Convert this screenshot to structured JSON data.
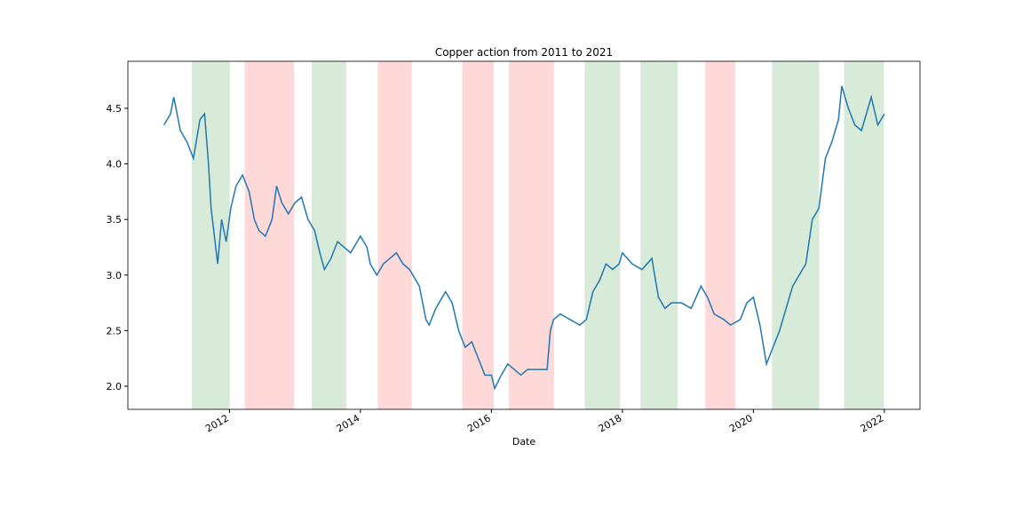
{
  "chart_data": {
    "type": "line",
    "title": "Copper action from 2011 to 2021",
    "x_label": "Date",
    "color": "#1f77b4",
    "x": [
      2011.0,
      2011.1,
      2011.15,
      2011.25,
      2011.35,
      2011.45,
      2011.55,
      2011.62,
      2011.68,
      2011.72,
      2011.78,
      2011.82,
      2011.88,
      2011.95,
      2012.02,
      2012.1,
      2012.2,
      2012.3,
      2012.38,
      2012.45,
      2012.55,
      2012.65,
      2012.72,
      2012.8,
      2012.9,
      2013.0,
      2013.1,
      2013.2,
      2013.3,
      2013.38,
      2013.45,
      2013.55,
      2013.65,
      2013.75,
      2013.85,
      2014.0,
      2014.1,
      2014.15,
      2014.25,
      2014.35,
      2014.45,
      2014.55,
      2014.65,
      2014.75,
      2014.9,
      2015.0,
      2015.05,
      2015.15,
      2015.3,
      2015.4,
      2015.5,
      2015.6,
      2015.7,
      2015.8,
      2015.9,
      2016.0,
      2016.05,
      2016.15,
      2016.25,
      2016.35,
      2016.45,
      2016.55,
      2016.7,
      2016.85,
      2016.9,
      2016.95,
      2017.05,
      2017.2,
      2017.35,
      2017.45,
      2017.55,
      2017.65,
      2017.75,
      2017.85,
      2017.95,
      2018.0,
      2018.15,
      2018.3,
      2018.45,
      2018.55,
      2018.65,
      2018.75,
      2018.9,
      2019.05,
      2019.2,
      2019.3,
      2019.4,
      2019.55,
      2019.65,
      2019.8,
      2019.9,
      2020.0,
      2020.1,
      2020.2,
      2020.3,
      2020.4,
      2020.5,
      2020.6,
      2020.7,
      2020.8,
      2020.9,
      2021.0,
      2021.1,
      2021.2,
      2021.3,
      2021.35,
      2021.45,
      2021.55,
      2021.65,
      2021.7,
      2021.8,
      2021.9,
      2022.0
    ],
    "values": [
      4.35,
      4.45,
      4.6,
      4.3,
      4.2,
      4.05,
      4.4,
      4.45,
      4.0,
      3.6,
      3.3,
      3.1,
      3.5,
      3.3,
      3.6,
      3.8,
      3.9,
      3.75,
      3.5,
      3.4,
      3.35,
      3.5,
      3.8,
      3.65,
      3.55,
      3.65,
      3.7,
      3.5,
      3.4,
      3.2,
      3.05,
      3.15,
      3.3,
      3.25,
      3.2,
      3.35,
      3.25,
      3.1,
      3.0,
      3.1,
      3.15,
      3.2,
      3.1,
      3.05,
      2.9,
      2.6,
      2.55,
      2.7,
      2.85,
      2.75,
      2.5,
      2.35,
      2.4,
      2.25,
      2.1,
      2.1,
      1.98,
      2.1,
      2.2,
      2.15,
      2.1,
      2.15,
      2.15,
      2.15,
      2.5,
      2.6,
      2.65,
      2.6,
      2.55,
      2.6,
      2.85,
      2.95,
      3.1,
      3.05,
      3.1,
      3.2,
      3.1,
      3.05,
      3.15,
      2.8,
      2.7,
      2.75,
      2.75,
      2.7,
      2.9,
      2.8,
      2.65,
      2.6,
      2.55,
      2.6,
      2.75,
      2.8,
      2.55,
      2.2,
      2.35,
      2.5,
      2.7,
      2.9,
      3.0,
      3.1,
      3.5,
      3.6,
      4.05,
      4.2,
      4.4,
      4.7,
      4.5,
      4.35,
      4.3,
      4.4,
      4.6,
      4.35,
      4.45
    ],
    "spans": [
      {
        "start": 2011.43,
        "end": 2012.0,
        "color": "#d8ebd8"
      },
      {
        "start": 2012.24,
        "end": 2012.98,
        "color": "#ffd8d8"
      },
      {
        "start": 2013.26,
        "end": 2013.78,
        "color": "#d8ebd8"
      },
      {
        "start": 2014.27,
        "end": 2014.78,
        "color": "#ffd8d8"
      },
      {
        "start": 2015.56,
        "end": 2016.03,
        "color": "#ffd8d8"
      },
      {
        "start": 2016.27,
        "end": 2016.95,
        "color": "#ffd8d8"
      },
      {
        "start": 2017.43,
        "end": 2017.96,
        "color": "#d8ebd8"
      },
      {
        "start": 2018.28,
        "end": 2018.84,
        "color": "#d8ebd8"
      },
      {
        "start": 2019.27,
        "end": 2019.72,
        "color": "#ffd8d8"
      },
      {
        "start": 2020.29,
        "end": 2021.0,
        "color": "#d8ebd8"
      },
      {
        "start": 2021.39,
        "end": 2021.99,
        "color": "#d8ebd8"
      }
    ],
    "xlim": [
      2010.449,
      2022.544
    ],
    "xticks": [
      2012,
      2014,
      2016,
      2018,
      2020,
      2022
    ],
    "ylim": [
      1.792,
      4.923
    ],
    "yticks": [
      {
        "value": 2.0,
        "label": "2.0"
      },
      {
        "value": 2.5,
        "label": "2.5"
      },
      {
        "value": 3.0,
        "label": "3.0"
      },
      {
        "value": 3.5,
        "label": "3.5"
      },
      {
        "value": 4.0,
        "label": "4.0"
      },
      {
        "value": 4.5,
        "label": "4.5"
      }
    ]
  }
}
